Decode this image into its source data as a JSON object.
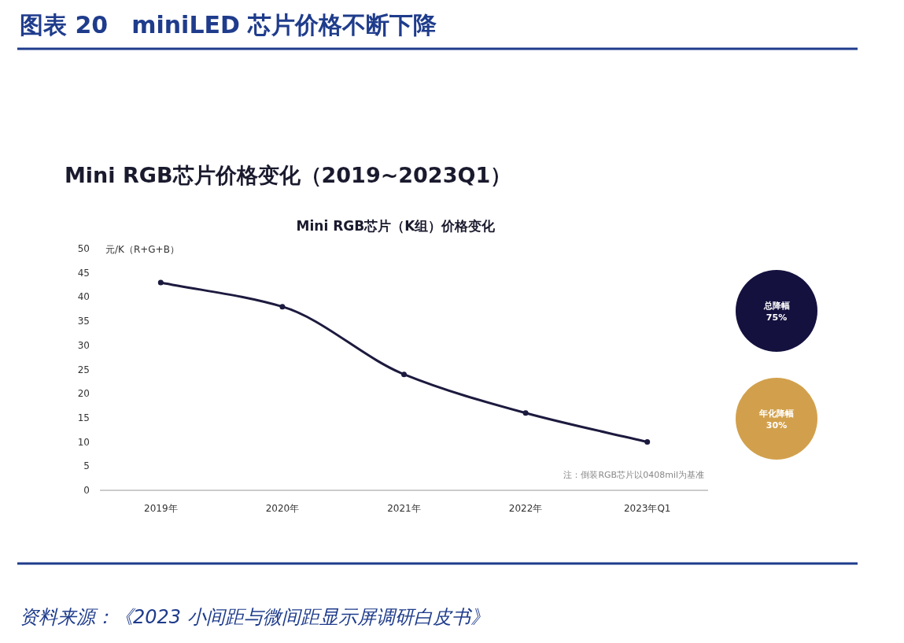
{
  "chart_data": {
    "type": "line",
    "title": "图表 20　miniLED 芯片价格不断下降",
    "subtitle": "Mini RGB芯片价格变化（2019~2023Q1）",
    "ylabel": "元/K（R+G+B）",
    "categories": [
      "2019年",
      "2020年",
      "2021年",
      "2022年",
      "2023年Q1"
    ],
    "series": [
      {
        "color": "#1c1a3e",
        "values": [
          43,
          38,
          24,
          16,
          10
        ]
      }
    ],
    "ylim": [
      0,
      50
    ],
    "yticks": [
      0,
      5,
      10,
      15,
      20,
      25,
      30,
      35,
      40,
      45,
      50
    ],
    "grid": false,
    "marker": "circle",
    "line_style": "solid",
    "annotations": [
      "Mini RGB芯片（K组）价格变化",
      "注：倒装RGB芯片以0408mil为基准",
      "总降幅\n75%",
      "年化降幅\n30%",
      "资料来源：《2023 小间距与微间距显示屏调研白皮书》"
    ]
  }
}
